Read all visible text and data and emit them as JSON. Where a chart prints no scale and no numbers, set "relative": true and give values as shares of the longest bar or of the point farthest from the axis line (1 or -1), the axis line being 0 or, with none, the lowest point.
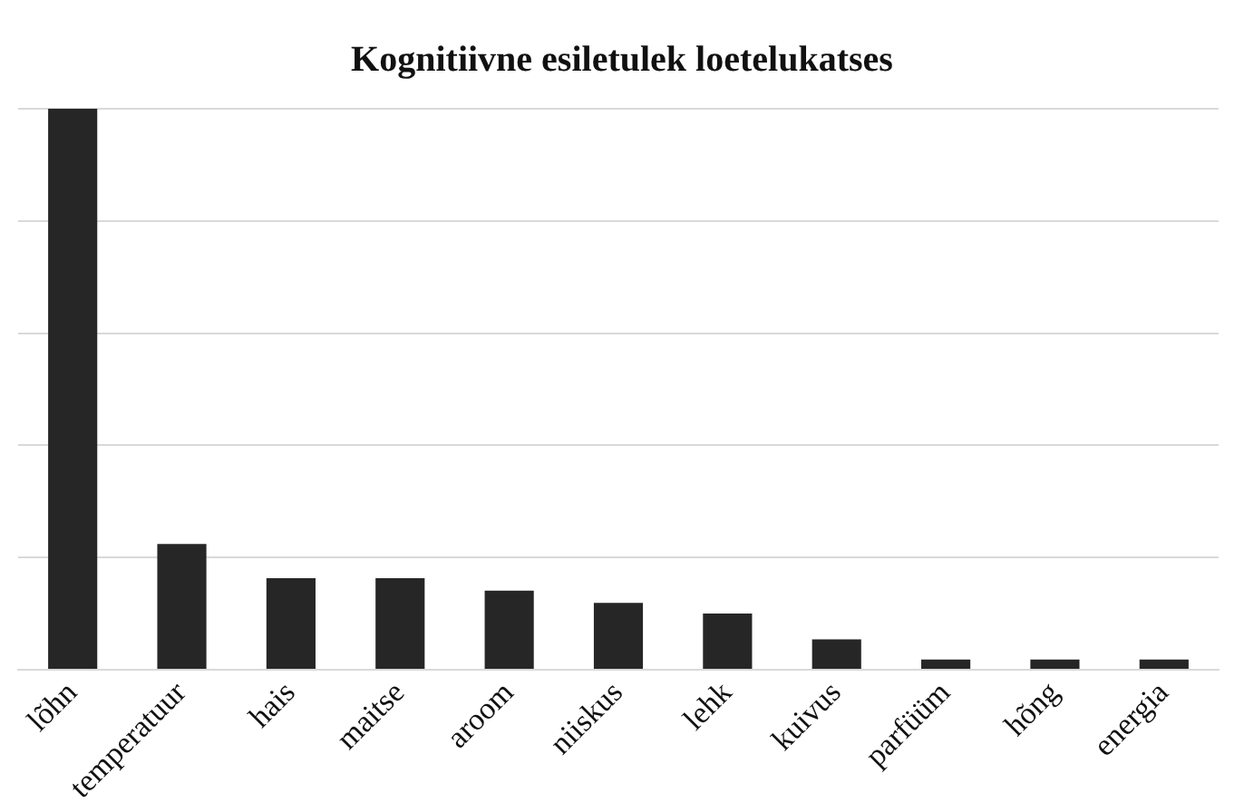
{
  "chart_data": {
    "type": "bar",
    "title": "Kognitiivne esiletulek loetelukatses",
    "relative": true,
    "grid": "y",
    "color": "#262626",
    "categories": [
      "lõhn",
      "temperatuur",
      "hais",
      "maitse",
      "aroom",
      "niiskus",
      "lehk",
      "kuivus",
      "parfüüm",
      "hõng",
      "energia"
    ],
    "values": [
      1,
      0.224,
      0.163,
      0.163,
      0.141,
      0.119,
      0.1,
      0.054,
      0.018,
      0.018,
      0.018
    ]
  }
}
